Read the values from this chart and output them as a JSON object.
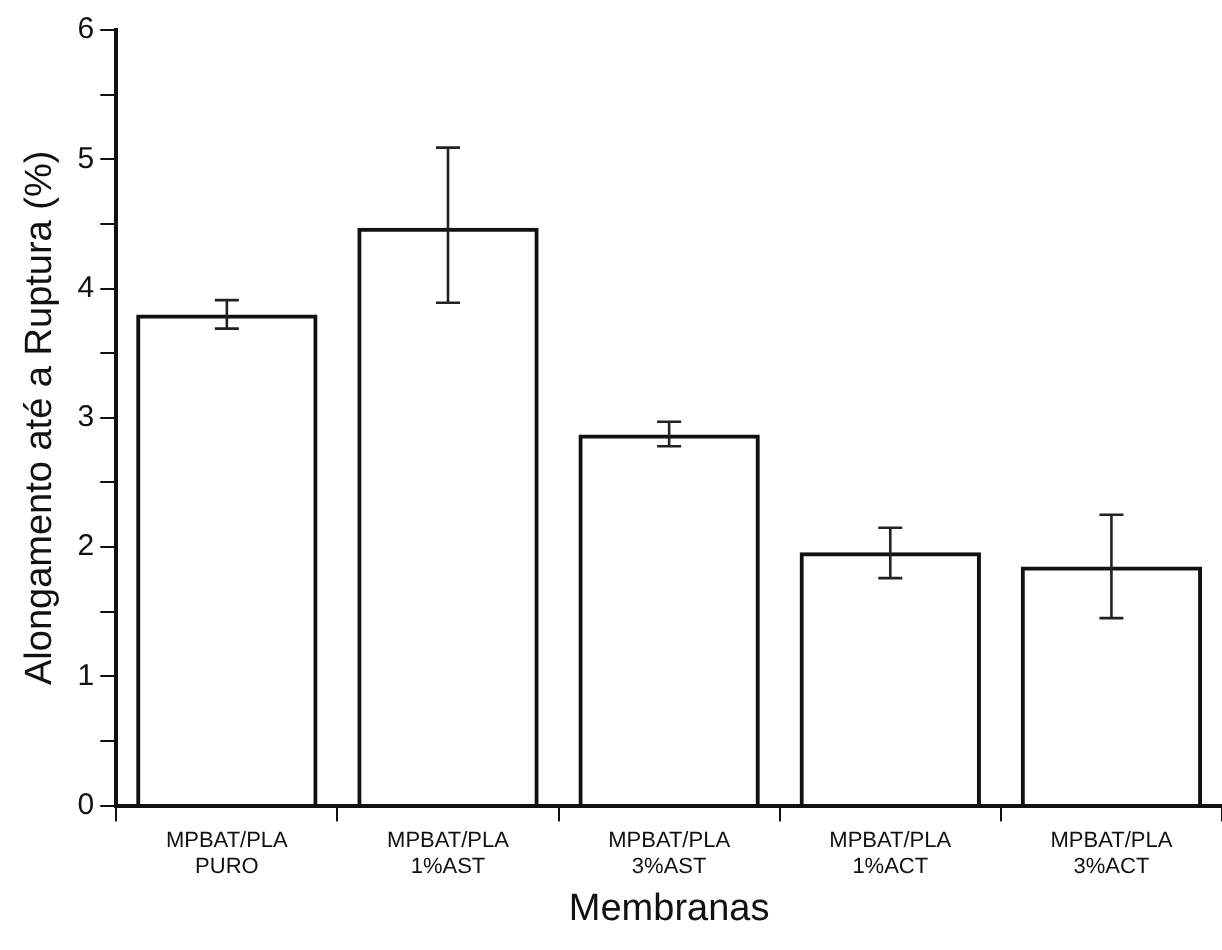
{
  "chart_data": {
    "type": "bar",
    "xlabel": "Membranas",
    "ylabel": "Alongamento até a Ruptura (%)",
    "categories": [
      "MPBAT/PLA\nPURO",
      "MPBAT/PLA\n1%AST",
      "MPBAT/PLA\n3%AST",
      "MPBAT/PLA\n1%ACT",
      "MPBAT/PLA\n3%ACT"
    ],
    "values": [
      3.8,
      4.47,
      2.87,
      1.96,
      1.85
    ],
    "errors": [
      [
        3.69,
        3.91
      ],
      [
        3.89,
        5.09
      ],
      [
        2.78,
        2.97
      ],
      [
        1.76,
        2.15
      ],
      [
        1.45,
        2.25
      ]
    ],
    "color": "#111111",
    "ylim": [
      0,
      6
    ],
    "yticks": [
      0,
      {
        "value": 0.5,
        "label": null
      },
      1,
      {
        "value": 1.5,
        "label": null
      },
      2,
      {
        "value": 2.5,
        "label": null
      },
      3,
      {
        "value": 3.5,
        "label": null
      },
      4,
      {
        "value": 4.5,
        "label": null
      },
      5,
      {
        "value": 5.5,
        "label": null
      },
      6
    ],
    "grid": false,
    "legend": false
  }
}
